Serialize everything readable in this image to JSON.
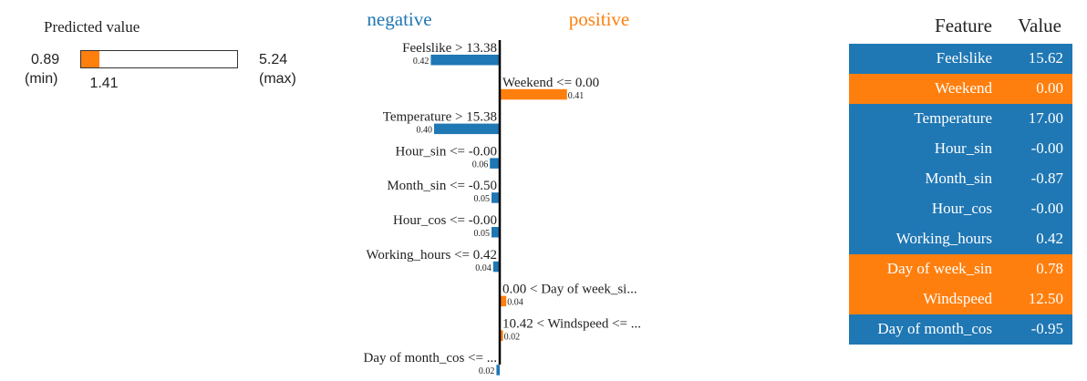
{
  "colors": {
    "negative": "#1f77b4",
    "positive": "#ff7f0e",
    "text": "#222222"
  },
  "prediction": {
    "title": "Predicted value",
    "min_value": "0.89",
    "min_label": "(min)",
    "max_value": "5.24",
    "max_label": "(max)",
    "value_label": "1.41",
    "min": 0.89,
    "max": 5.24,
    "value": 1.41
  },
  "chart_data": {
    "type": "bar",
    "orientation": "horizontal",
    "legend": {
      "negative": "negative",
      "positive": "positive"
    },
    "categories": [
      "Feelslike > 13.38",
      "Weekend <= 0.00",
      "Temperature > 15.38",
      "Hour_sin <= -0.00",
      "Month_sin <= -0.50",
      "Hour_cos <= -0.00",
      "Working_hours <= 0.42",
      "0.00 < Day of week_si...",
      "10.42 < Windspeed <= ...",
      "Day of month_cos <= ..."
    ],
    "values": [
      -0.42,
      0.41,
      -0.4,
      -0.06,
      -0.05,
      -0.05,
      -0.04,
      0.04,
      0.02,
      -0.02
    ],
    "value_labels": [
      "0.42",
      "0.41",
      "0.40",
      "0.06",
      "0.05",
      "0.05",
      "0.04",
      "0.04",
      "0.02",
      "0.02"
    ]
  },
  "table": {
    "headers": {
      "feature": "Feature",
      "value": "Value"
    },
    "rows": [
      {
        "feature": "Feelslike",
        "value": "15.62",
        "sign": "negative"
      },
      {
        "feature": "Weekend",
        "value": "0.00",
        "sign": "positive"
      },
      {
        "feature": "Temperature",
        "value": "17.00",
        "sign": "negative"
      },
      {
        "feature": "Hour_sin",
        "value": "-0.00",
        "sign": "negative"
      },
      {
        "feature": "Month_sin",
        "value": "-0.87",
        "sign": "negative"
      },
      {
        "feature": "Hour_cos",
        "value": "-0.00",
        "sign": "negative"
      },
      {
        "feature": "Working_hours",
        "value": "0.42",
        "sign": "negative"
      },
      {
        "feature": "Day of week_sin",
        "value": "0.78",
        "sign": "positive"
      },
      {
        "feature": "Windspeed",
        "value": "12.50",
        "sign": "positive"
      },
      {
        "feature": "Day of month_cos",
        "value": "-0.95",
        "sign": "negative"
      }
    ]
  }
}
